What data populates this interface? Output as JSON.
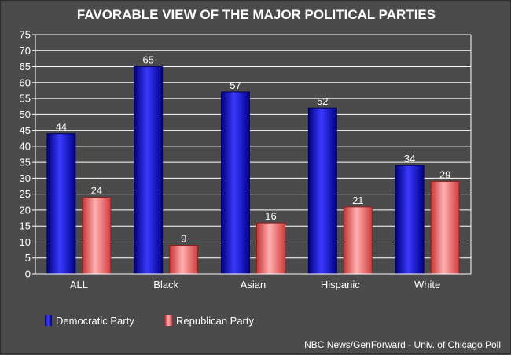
{
  "colors": {
    "background": "#4b4b4b",
    "grid": "#ffffff",
    "democratic": "#1010ee",
    "republican": "#ee4a4a"
  },
  "chart_data": {
    "type": "bar",
    "title": "FAVORABLE VIEW OF THE MAJOR POLITICAL PARTIES",
    "categories": [
      "ALL",
      "Black",
      "Asian",
      "Hispanic",
      "White"
    ],
    "series": [
      {
        "name": "Democratic Party",
        "values": [
          44,
          65,
          57,
          52,
          34
        ]
      },
      {
        "name": "Republican Party",
        "values": [
          24,
          9,
          16,
          21,
          29
        ]
      }
    ],
    "ylim": [
      0,
      75
    ],
    "yticks": [
      0,
      5,
      10,
      15,
      20,
      25,
      30,
      35,
      40,
      45,
      50,
      55,
      60,
      65,
      70,
      75
    ],
    "xlabel": "",
    "ylabel": "",
    "grid": true,
    "legend": "bottom-left",
    "source": "NBC News/GenForward - Univ. of Chicago Poll"
  }
}
